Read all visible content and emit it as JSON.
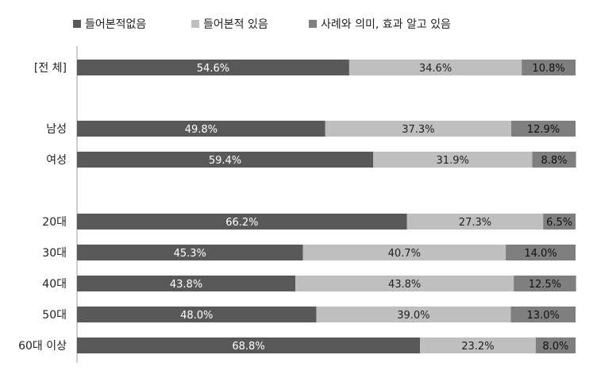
{
  "chart_data": {
    "type": "bar",
    "orientation": "horizontal",
    "stacked": true,
    "percent_stacked": true,
    "xlim": [
      0,
      100
    ],
    "grid": false,
    "legend": "top",
    "categories": [
      "[전 체]",
      "남성",
      "여성",
      "20대",
      "30대",
      "40대",
      "50대",
      "60대 이상"
    ],
    "series": [
      {
        "name": "들어본적없음",
        "color": "#595959",
        "values": [
          54.6,
          49.8,
          59.4,
          66.2,
          45.3,
          43.8,
          48.0,
          68.8
        ],
        "labels": [
          "54.6%",
          "49.8%",
          "59.4%",
          "66.2%",
          "45.3%",
          "43.8%",
          "48.0%",
          "68.8%"
        ]
      },
      {
        "name": "들어본적 있음",
        "color": "#bfbfbf",
        "values": [
          34.6,
          37.3,
          31.9,
          27.3,
          40.7,
          43.8,
          39.0,
          23.2
        ],
        "labels": [
          "34.6%",
          "37.3%",
          "31.9%",
          "27.3%",
          "40.7%",
          "43.8%",
          "39.0%",
          "23.2%"
        ]
      },
      {
        "name": "사례와 의미, 효과 알고 있음",
        "color": "#7f7f7f",
        "values": [
          10.8,
          12.9,
          8.8,
          6.5,
          14.0,
          12.5,
          13.0,
          8.0
        ],
        "labels": [
          "10.8%",
          "12.9%",
          "8.8%",
          "6.5%",
          "14.0%",
          "12.5%",
          "13.0%",
          "8.0%"
        ]
      }
    ]
  }
}
